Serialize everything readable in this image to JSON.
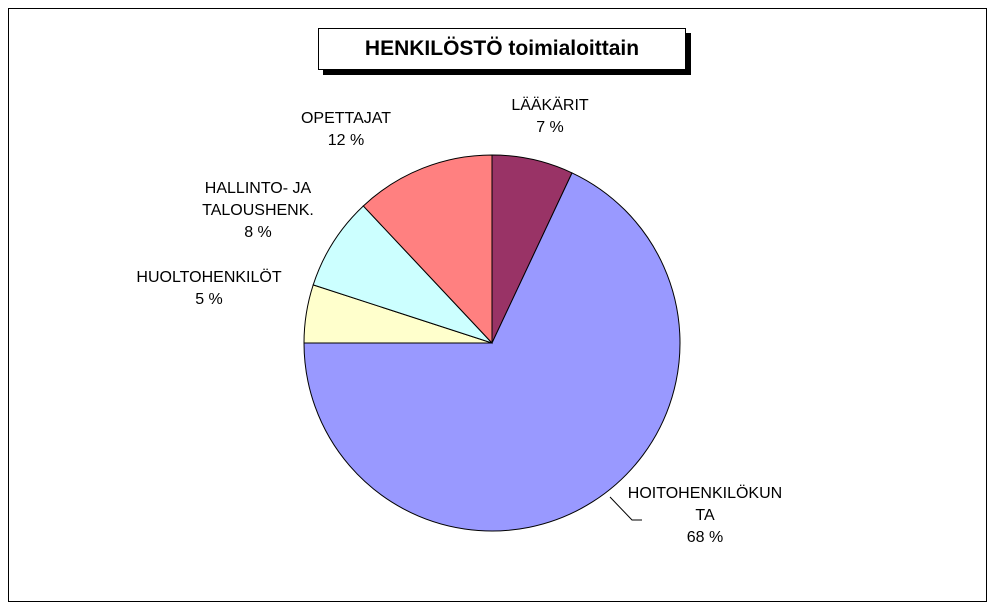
{
  "chart_data": {
    "type": "pie",
    "title": "HENKILÖSTÖ toimialoittain",
    "categories": [
      "LÄÄKÄRIT",
      "HOITOHENKILÖKUNTA",
      "HUOLTOHENKILÖT",
      "HALLINTO- JA TALOUSHENK.",
      "OPETTAJAT"
    ],
    "values": [
      7,
      68,
      5,
      8,
      12
    ],
    "value_labels": [
      "7 %",
      "68 %",
      "5 %",
      "8 %",
      "12 %"
    ],
    "colors": [
      "#993366",
      "#9999ff",
      "#ffffcc",
      "#ccffff",
      "#ff8080"
    ]
  }
}
